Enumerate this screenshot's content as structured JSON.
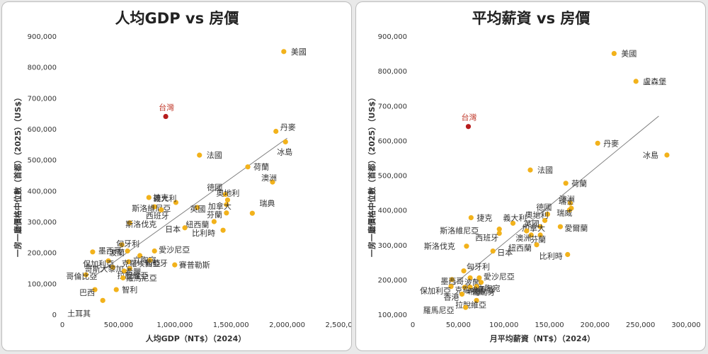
{
  "chart_data": [
    {
      "type": "scatter",
      "title": "人均GDP vs 房價",
      "xlabel": "人均GDP（NT$）（2024）",
      "ylabel": "一房一廳價格中位數（首都）（2025）（US$）",
      "xlim": [
        0,
        2500000
      ],
      "ylim": [
        0,
        900000
      ],
      "x_ticks": [
        "0",
        "500,000",
        "1,000,000",
        "1,500,000",
        "2,000,000",
        "2,500,000"
      ],
      "y_ticks": [
        "0",
        "100,000",
        "200,000",
        "300,000",
        "400,000",
        "500,000",
        "600,000",
        "700,000",
        "800,000",
        "900,000"
      ],
      "trendline": {
        "from": [
          270000,
          120000
        ],
        "to": [
          2000000,
          570000
        ]
      },
      "colors": {
        "point": "#f2b21b",
        "highlight": "#b71c1c",
        "trend": "#777777"
      },
      "points": [
        {
          "name": "美國",
          "x": 1970000,
          "y": 850000
        },
        {
          "name": "台灣",
          "x": 920000,
          "y": 640000,
          "highlight": true
        },
        {
          "name": "丹麥",
          "x": 1900000,
          "y": 592000
        },
        {
          "name": "冰島",
          "x": 1985000,
          "y": 558000
        },
        {
          "name": "法國",
          "x": 1220000,
          "y": 515000
        },
        {
          "name": "荷蘭",
          "x": 1650000,
          "y": 477000
        },
        {
          "name": "澳洲",
          "x": 1870000,
          "y": 428000
        },
        {
          "name": "德國",
          "x": 1450000,
          "y": 388000
        },
        {
          "name": "瑞典",
          "x": 1690000,
          "y": 327000
        },
        {
          "name": "捷克",
          "x": 770000,
          "y": 378000
        },
        {
          "name": "奧地利",
          "x": 1470000,
          "y": 370000
        },
        {
          "name": "義大利",
          "x": 1010000,
          "y": 362000
        },
        {
          "name": "加拿大",
          "x": 1460000,
          "y": 355000
        },
        {
          "name": "斯洛維尼亞",
          "x": 820000,
          "y": 348000
        },
        {
          "name": "英國",
          "x": 1200000,
          "y": 346000
        },
        {
          "name": "西班牙",
          "x": 880000,
          "y": 338000
        },
        {
          "name": "芬蘭",
          "x": 1460000,
          "y": 328000
        },
        {
          "name": "紐西蘭",
          "x": 1350000,
          "y": 300000
        },
        {
          "name": "斯洛伐克",
          "x": 600000,
          "y": 296000
        },
        {
          "name": "日本",
          "x": 1090000,
          "y": 280000
        },
        {
          "name": "比利時",
          "x": 1430000,
          "y": 272000
        },
        {
          "name": "匈牙利",
          "x": 530000,
          "y": 225000
        },
        {
          "name": "墨西哥",
          "x": 270000,
          "y": 202000
        },
        {
          "name": "波蘭",
          "x": 580000,
          "y": 205000
        },
        {
          "name": "愛沙尼亞",
          "x": 820000,
          "y": 205000
        },
        {
          "name": "立陶宛",
          "x": 690000,
          "y": 190000
        },
        {
          "name": "保加利亞",
          "x": 410000,
          "y": 173000
        },
        {
          "name": "克羅埃西亞",
          "x": 590000,
          "y": 170000
        },
        {
          "name": "葡萄牙",
          "x": 780000,
          "y": 175000
        },
        {
          "name": "賽普勒斯",
          "x": 1000000,
          "y": 160000
        },
        {
          "name": "哥斯大黎加",
          "x": 450000,
          "y": 152000
        },
        {
          "name": "希臘",
          "x": 600000,
          "y": 148000
        },
        {
          "name": "拉脫維亞",
          "x": 550000,
          "y": 140000
        },
        {
          "name": "哥倫比亞",
          "x": 210000,
          "y": 128000
        },
        {
          "name": "羅馬尼亞",
          "x": 540000,
          "y": 118000
        },
        {
          "name": "巴西",
          "x": 290000,
          "y": 80000
        },
        {
          "name": "智利",
          "x": 480000,
          "y": 80000
        },
        {
          "name": "土耳其",
          "x": 360000,
          "y": 45000
        }
      ]
    },
    {
      "type": "scatter",
      "title": "平均薪資 vs 房價",
      "xlabel": "月平均薪資（NT$）（2024）",
      "ylabel": "一房一廳價格中位數（首都）（2025）（US$）",
      "xlim": [
        0,
        300000
      ],
      "ylim": [
        100000,
        900000
      ],
      "x_ticks": [
        "0",
        "50,000",
        "100,000",
        "150,000",
        "200,000",
        "250,000",
        "300,000"
      ],
      "y_ticks": [
        "100,000",
        "200,000",
        "300,000",
        "400,000",
        "500,000",
        "600,000",
        "700,000",
        "800,000",
        "900,000"
      ],
      "trendline": {
        "from": [
          40000,
          175000
        ],
        "to": [
          270000,
          670000
        ]
      },
      "colors": {
        "point": "#f2b21b",
        "highlight": "#b71c1c",
        "trend": "#777777"
      },
      "points": [
        {
          "name": "美國",
          "x": 221000,
          "y": 850000
        },
        {
          "name": "盧森堡",
          "x": 245000,
          "y": 770000
        },
        {
          "name": "台灣",
          "x": 61000,
          "y": 640000,
          "highlight": true
        },
        {
          "name": "丹麥",
          "x": 203000,
          "y": 592000
        },
        {
          "name": "冰島",
          "x": 279000,
          "y": 558000
        },
        {
          "name": "法國",
          "x": 129000,
          "y": 515000
        },
        {
          "name": "荷蘭",
          "x": 168000,
          "y": 477000
        },
        {
          "name": "澳洲",
          "x": 173000,
          "y": 420000
        },
        {
          "name": "瑞士",
          "x": 174000,
          "y": 405000
        },
        {
          "name": "瑞威",
          "x": 172000,
          "y": 400000
        },
        {
          "name": "德國",
          "x": 148000,
          "y": 388000
        },
        {
          "name": "捷克",
          "x": 64000,
          "y": 378000
        },
        {
          "name": "奧地利",
          "x": 145000,
          "y": 370000
        },
        {
          "name": "義大利",
          "x": 110000,
          "y": 362000
        },
        {
          "name": "斯洛維尼亞",
          "x": 95000,
          "y": 345000
        },
        {
          "name": "加拿大",
          "x": 140000,
          "y": 352000
        },
        {
          "name": "愛爾蘭",
          "x": 162000,
          "y": 352000
        },
        {
          "name": "西班牙",
          "x": 95000,
          "y": 333000
        },
        {
          "name": "英國",
          "x": 125000,
          "y": 340000
        },
        {
          "name": "澳洲2",
          "x": 130000,
          "y": 328000
        },
        {
          "name": "芬蘭",
          "x": 140000,
          "y": 328000
        },
        {
          "name": "紐西蘭",
          "x": 136000,
          "y": 300000
        },
        {
          "name": "斯洛伐克",
          "x": 59000,
          "y": 296000
        },
        {
          "name": "日本",
          "x": 88000,
          "y": 282000
        },
        {
          "name": "比利時",
          "x": 170000,
          "y": 272000
        },
        {
          "name": "匈牙利",
          "x": 56000,
          "y": 225000
        },
        {
          "name": "墨西哥",
          "x": 43000,
          "y": 200000
        },
        {
          "name": "波蘭",
          "x": 63000,
          "y": 205000
        },
        {
          "name": "愛沙尼亞",
          "x": 73000,
          "y": 205000
        },
        {
          "name": "立陶宛",
          "x": 75000,
          "y": 192000
        },
        {
          "name": "葡萄牙",
          "x": 70000,
          "y": 180000
        },
        {
          "name": "保加利亞",
          "x": 42000,
          "y": 180000
        },
        {
          "name": "克羅埃西亞",
          "x": 57000,
          "y": 178000
        },
        {
          "name": "希臘",
          "x": 63000,
          "y": 178000
        },
        {
          "name": "香港",
          "x": 54000,
          "y": 158000
        },
        {
          "name": "拉脫維亞",
          "x": 70000,
          "y": 140000
        },
        {
          "name": "羅馬尼亞",
          "x": 58000,
          "y": 120000
        }
      ]
    }
  ]
}
